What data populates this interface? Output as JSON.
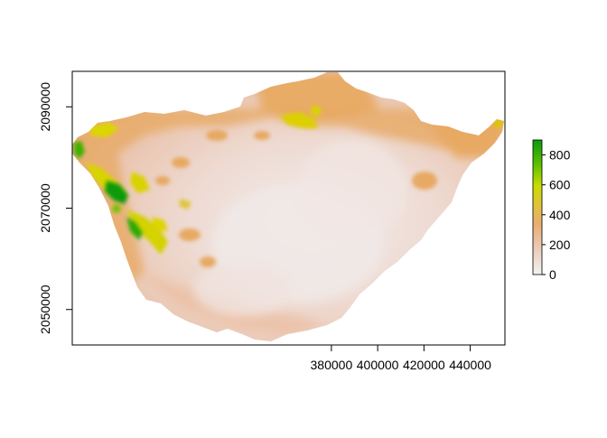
{
  "chart_data": {
    "type": "heatmap",
    "title": "",
    "xlabel": "",
    "ylabel": "",
    "x_ticks": [
      "380000",
      "400000",
      "420000",
      "440000"
    ],
    "x_tick_values": [
      380000,
      400000,
      420000,
      440000
    ],
    "y_ticks": [
      "2050000",
      "2070000",
      "2090000"
    ],
    "y_tick_values": [
      2050000,
      2070000,
      2090000
    ],
    "xlim": [
      268000,
      455000
    ],
    "ylim": [
      2043000,
      2097000
    ],
    "grid": false,
    "legend": {
      "placement": "right",
      "ticks": [
        "0",
        "200",
        "400",
        "600",
        "800"
      ],
      "tick_values": [
        0,
        200,
        400,
        600,
        800
      ],
      "range": [
        0,
        900
      ],
      "colors": [
        "#f2f2f2",
        "#e8c3ac",
        "#e8a964",
        "#dcd800",
        "#7ccc00",
        "#0c9a0c"
      ]
    },
    "colors": {
      "low": "#f2f2f2",
      "mid_low": "#ebc8b4",
      "mid": "#e8a964",
      "mid_high": "#dcd800",
      "high": "#0c9a0c"
    }
  }
}
